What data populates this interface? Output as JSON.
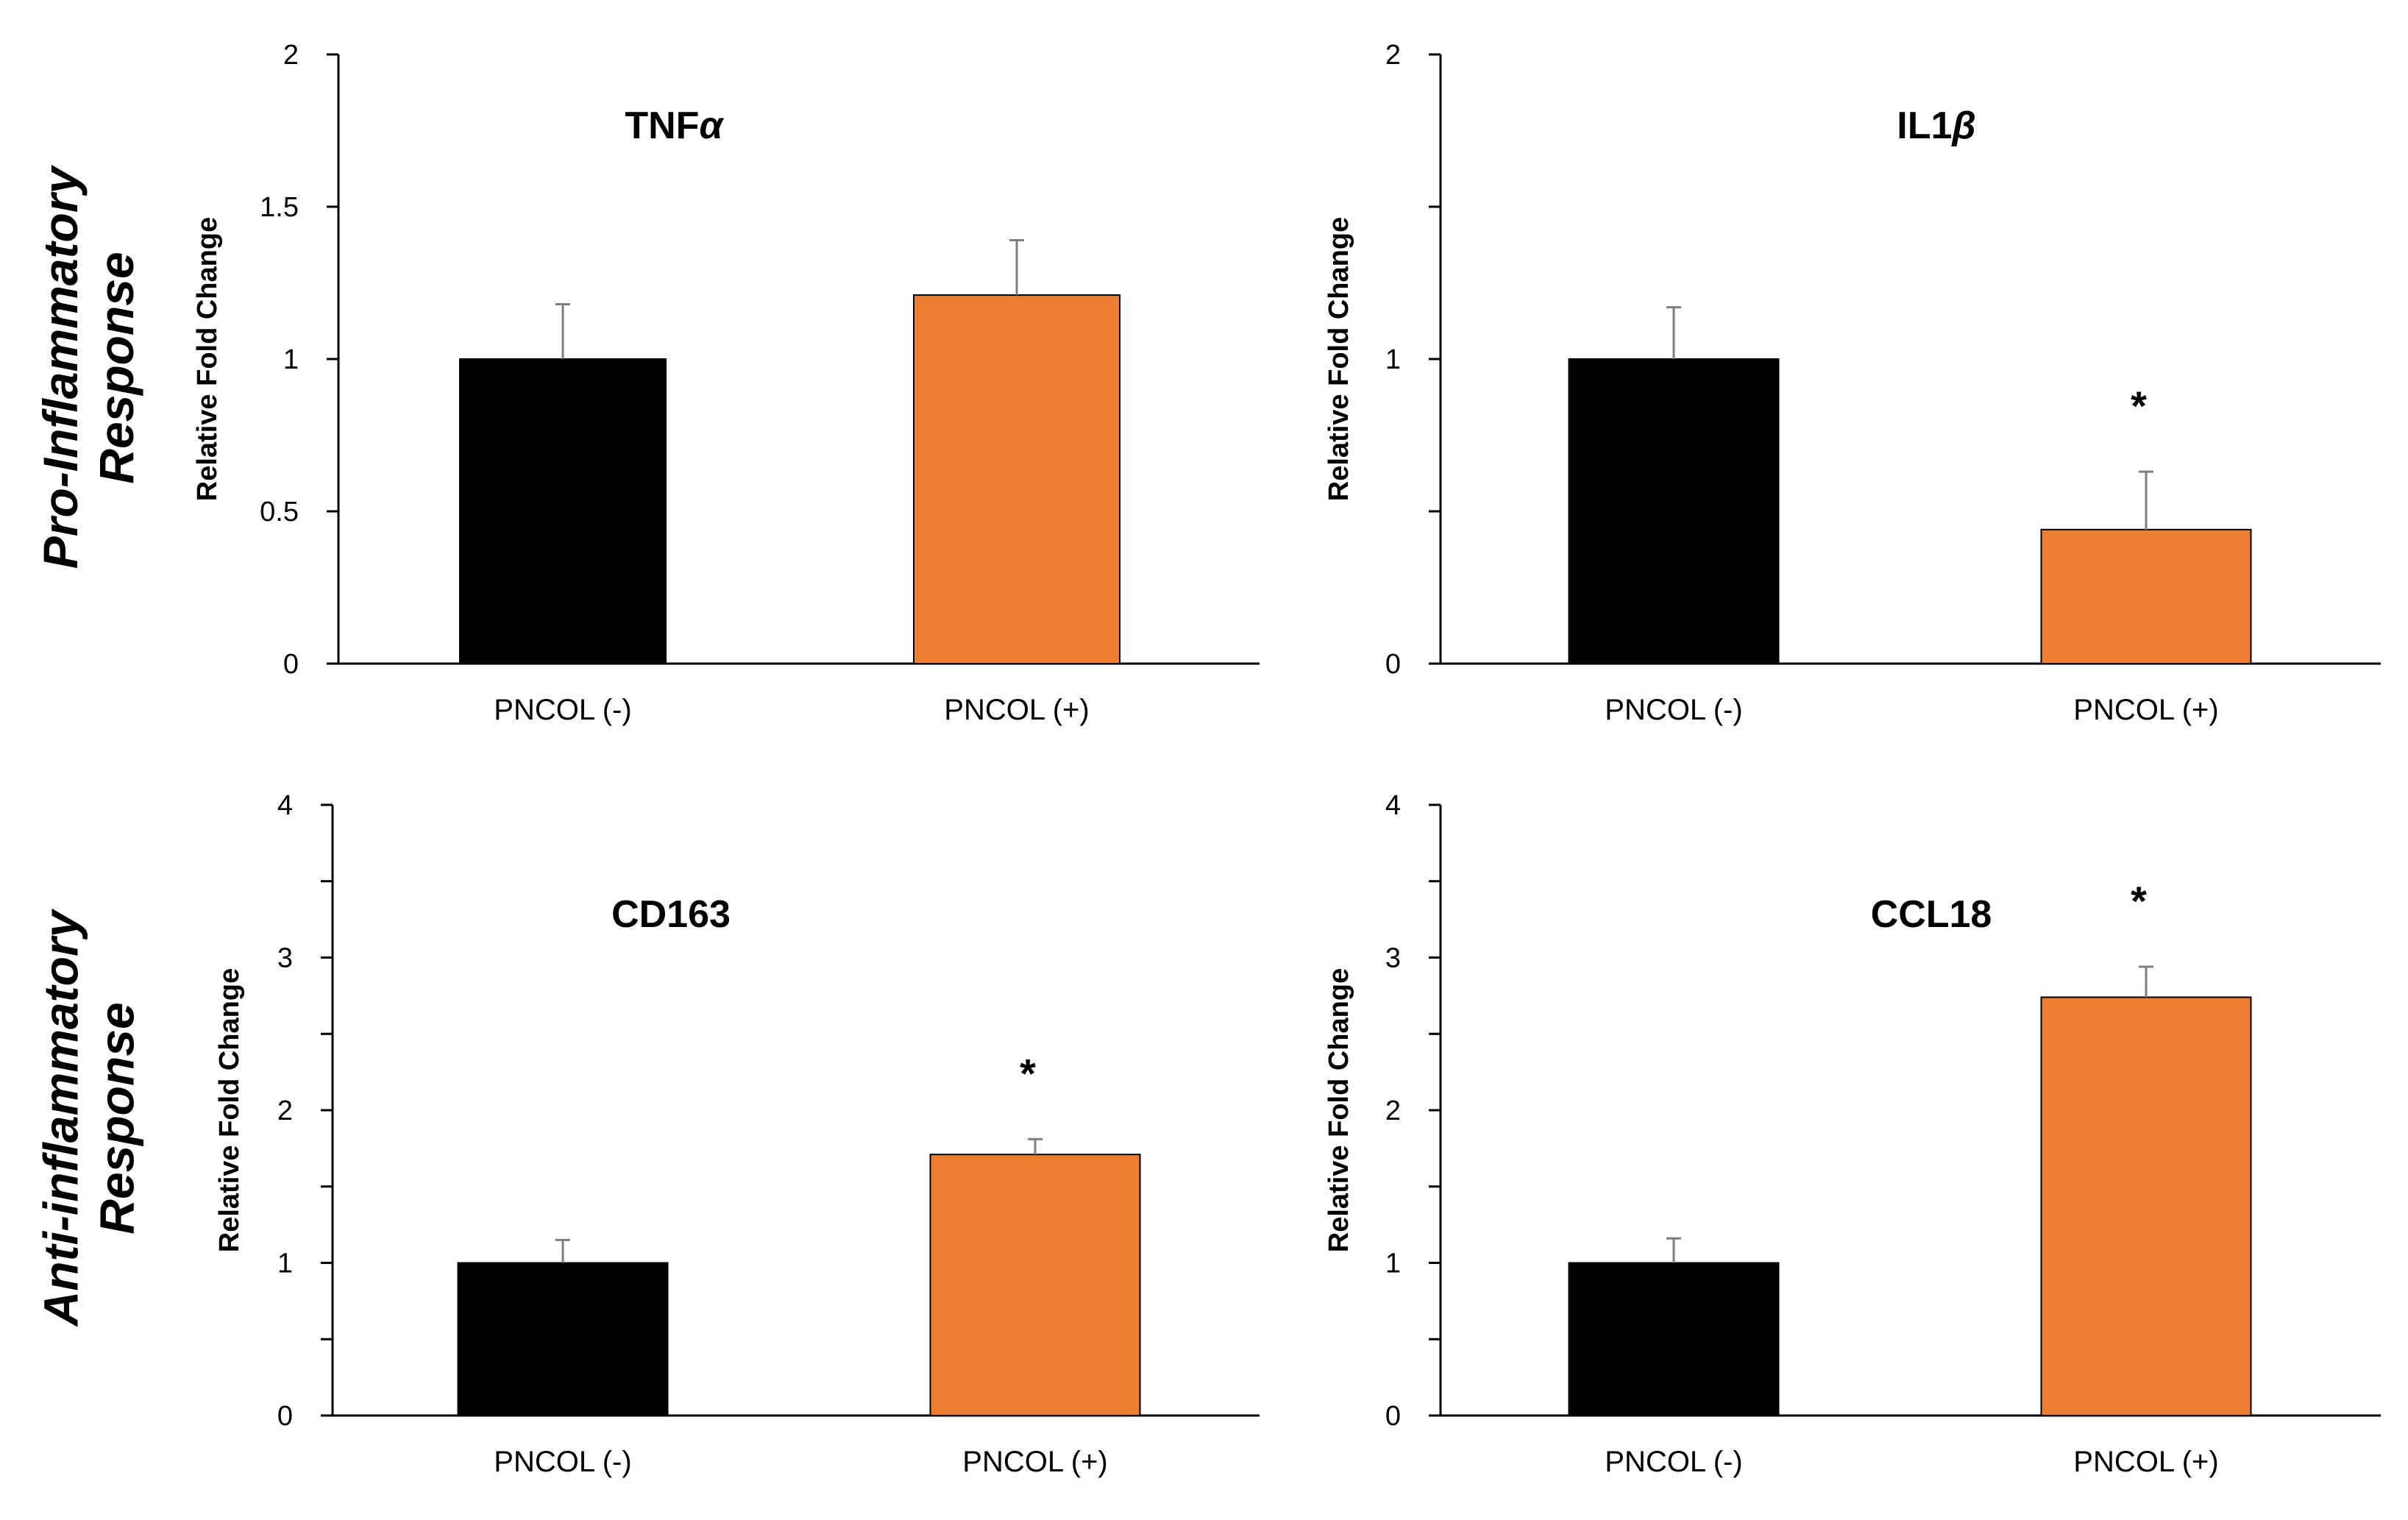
{
  "row_labels": {
    "pro_line1": "Pro-Inflammatory",
    "pro_line2": "Response",
    "anti_line1": "Anti-inflammatory",
    "anti_line2": "Response"
  },
  "colors": {
    "control": "#000000",
    "treated": "#ED7D31",
    "axis": "#000000",
    "error_bar": "#7f7f7f"
  },
  "chart_data": [
    {
      "type": "bar",
      "title": "TNF",
      "title_symbol": "α",
      "ylabel": "Relative Fold Change",
      "categories": [
        "PNCOL (-)",
        "PNCOL (+)"
      ],
      "values": [
        1.0,
        1.21
      ],
      "errors": [
        0.18,
        0.18
      ],
      "significant": [
        false,
        false
      ],
      "ylim": [
        0,
        2
      ],
      "yticks": [
        0,
        0.5,
        1,
        1.5,
        2
      ],
      "yticklabels": [
        "0",
        "0.5",
        "1",
        "1.5",
        "2"
      ],
      "grid": false,
      "legend": "none"
    },
    {
      "type": "bar",
      "title": "IL1",
      "title_symbol": "β",
      "ylabel": "Relative Fold Change",
      "categories": [
        "PNCOL (-)",
        "PNCOL (+)"
      ],
      "values": [
        1.0,
        0.44
      ],
      "errors": [
        0.17,
        0.19
      ],
      "significant": [
        false,
        true
      ],
      "ylim": [
        0,
        2
      ],
      "yticks": [
        0,
        0.5,
        1,
        1.5,
        2
      ],
      "yticklabels": [
        "0",
        "",
        "1",
        "",
        "2"
      ],
      "grid": false,
      "legend": "none"
    },
    {
      "type": "bar",
      "title": "CD163",
      "title_symbol": "",
      "ylabel": "Relative Fold Change",
      "categories": [
        "PNCOL (-)",
        "PNCOL (+)"
      ],
      "values": [
        1.0,
        1.71
      ],
      "errors": [
        0.15,
        0.1
      ],
      "significant": [
        false,
        true
      ],
      "ylim": [
        0,
        4
      ],
      "yticks": [
        0,
        0.5,
        1,
        1.5,
        2,
        2.5,
        3,
        3.5,
        4
      ],
      "yticklabels": [
        "0",
        "",
        "1",
        "",
        "2",
        "",
        "3",
        "",
        "4"
      ],
      "grid": false,
      "legend": "none"
    },
    {
      "type": "bar",
      "title": "CCL18",
      "title_symbol": "",
      "ylabel": "Relative Fold Change",
      "categories": [
        "PNCOL (-)",
        "PNCOL (+)"
      ],
      "values": [
        1.0,
        2.74
      ],
      "errors": [
        0.16,
        0.2
      ],
      "significant": [
        false,
        true
      ],
      "ylim": [
        0,
        4
      ],
      "yticks": [
        0,
        0.5,
        1,
        1.5,
        2,
        2.5,
        3,
        3.5,
        4
      ],
      "yticklabels": [
        "0",
        "",
        "1",
        "",
        "2",
        "",
        "3",
        "",
        "4"
      ],
      "grid": false,
      "legend": "none"
    }
  ],
  "significance_marker": "*"
}
